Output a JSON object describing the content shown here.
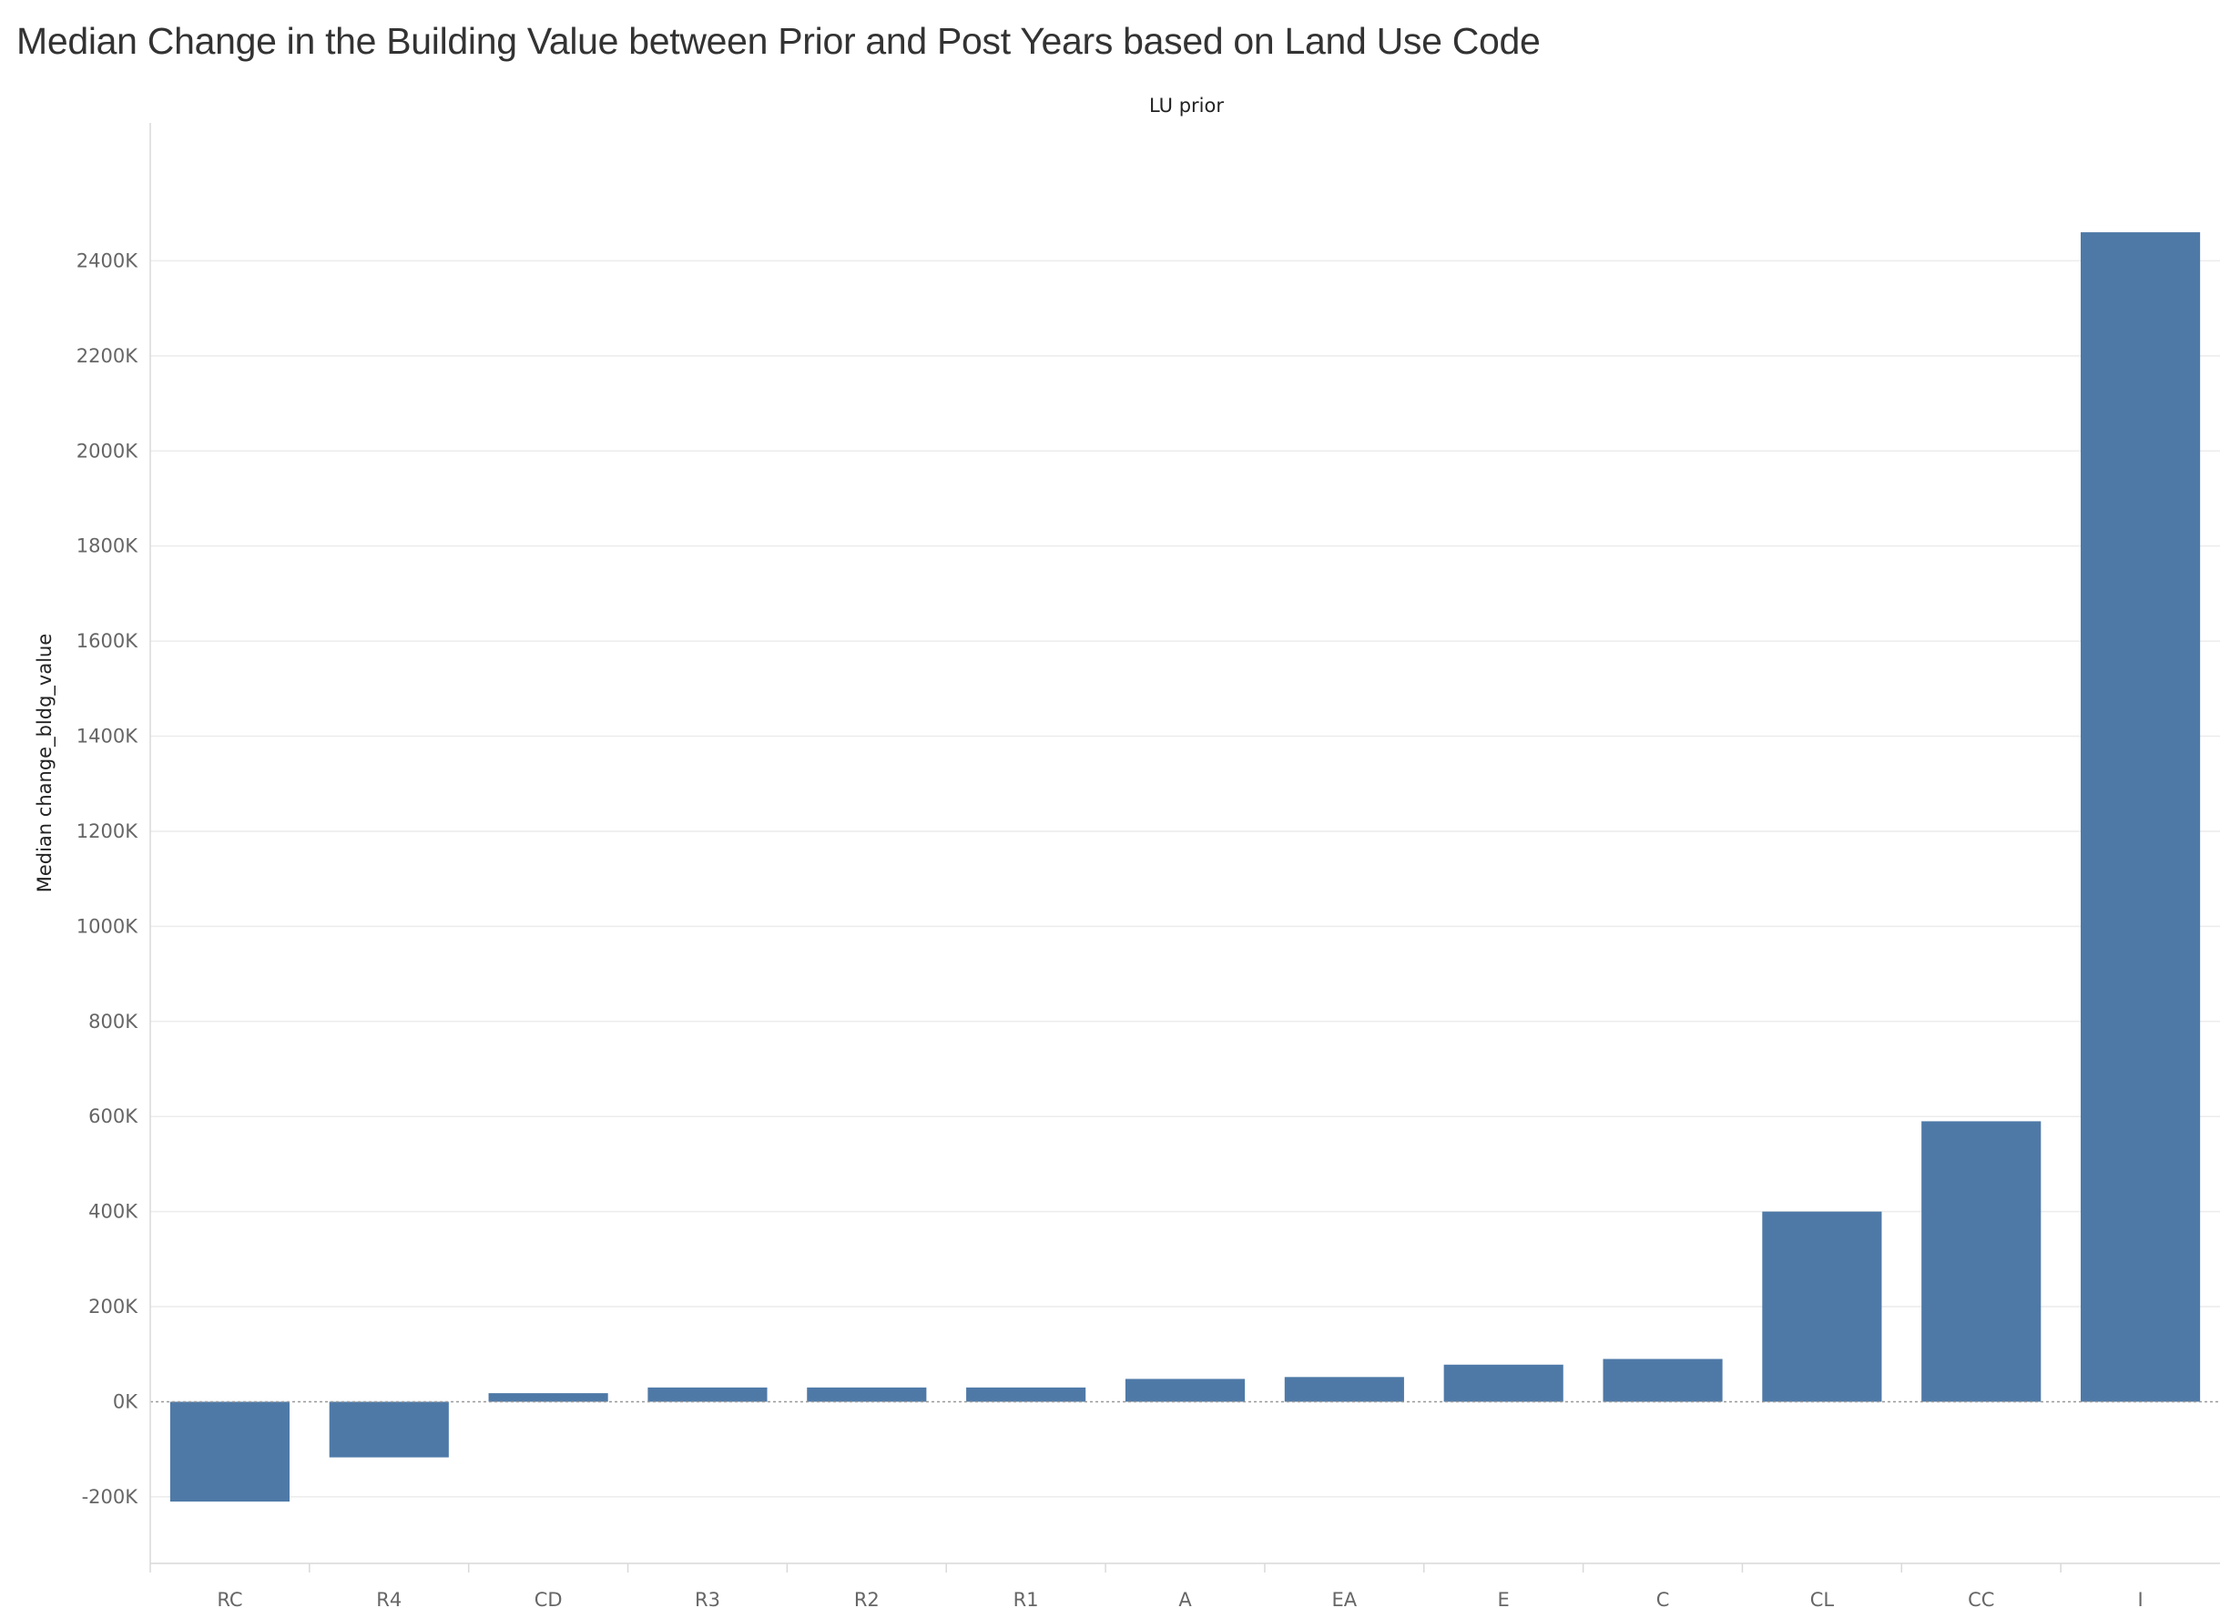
{
  "chart_data": {
    "type": "bar",
    "title": "Median Change in the Building Value between Prior and Post Years based on Land Use Code",
    "column_header": "LU prior",
    "ylabel": "Median change_bldg_value",
    "xlabel": "",
    "categories": [
      "RC",
      "R4",
      "CD",
      "R3",
      "R2",
      "R1",
      "A",
      "EA",
      "E",
      "C",
      "CL",
      "CC",
      "I"
    ],
    "values": [
      -210000,
      -117000,
      18000,
      30000,
      30000,
      30000,
      48000,
      52000,
      78000,
      90000,
      400000,
      590000,
      2460000
    ],
    "ylim": [
      -340000,
      2690000
    ],
    "yticks": [
      -200000,
      0,
      200000,
      400000,
      600000,
      800000,
      1000000,
      1200000,
      1400000,
      1600000,
      1800000,
      2000000,
      2200000,
      2400000
    ],
    "ytick_labels": [
      "-200K",
      "0K",
      "200K",
      "400K",
      "600K",
      "800K",
      "1000K",
      "1200K",
      "1400K",
      "1600K",
      "1800K",
      "2000K",
      "2200K",
      "2400K"
    ],
    "grid": true,
    "colors": {
      "bar": "#4e79a7",
      "grid": "#ececec",
      "zero_line": "#999999",
      "axis": "#d9d9d9"
    }
  }
}
